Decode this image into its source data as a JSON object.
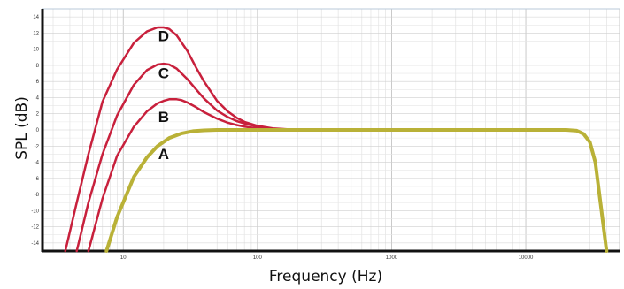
{
  "chart_data": {
    "type": "line",
    "title": "",
    "xlabel": "Frequency (Hz)",
    "ylabel": "SPL (dB)",
    "xscale": "log",
    "xlim": [
      2.5,
      50000
    ],
    "ylim": [
      -15,
      15
    ],
    "grid": true,
    "x_ticks": [
      {
        "value": 10,
        "label": "10"
      },
      {
        "value": 100,
        "label": "100"
      },
      {
        "value": 1000,
        "label": "1000"
      },
      {
        "value": 10000,
        "label": "10000"
      }
    ],
    "y_ticks": [
      {
        "value": 14,
        "label": "14"
      },
      {
        "value": 12,
        "label": "12"
      },
      {
        "value": 10,
        "label": "10"
      },
      {
        "value": 8,
        "label": "8"
      },
      {
        "value": 6,
        "label": "6"
      },
      {
        "value": 4,
        "label": "4"
      },
      {
        "value": 2,
        "label": "2"
      },
      {
        "value": 0,
        "label": "0"
      },
      {
        "value": -2,
        "label": "-2"
      },
      {
        "value": -4,
        "label": "-4"
      },
      {
        "value": -6,
        "label": "-6"
      },
      {
        "value": -8,
        "label": "-8"
      },
      {
        "value": -10,
        "label": "-10"
      },
      {
        "value": -12,
        "label": "-12"
      },
      {
        "value": -14,
        "label": "-14"
      }
    ],
    "series": [
      {
        "name": "D",
        "color": "#c8203c",
        "x": [
          3.7,
          4.5,
          5.5,
          7,
          9,
          12,
          15,
          18,
          20,
          22,
          25,
          30,
          35,
          40,
          50,
          60,
          70,
          80,
          100,
          130,
          200,
          400,
          1000,
          10000
        ],
        "y": [
          -15,
          -9,
          -3,
          3.5,
          7.5,
          10.8,
          12.2,
          12.7,
          12.7,
          12.5,
          11.7,
          9.8,
          7.7,
          6,
          3.6,
          2.3,
          1.5,
          1,
          0.5,
          0.2,
          0,
          0,
          0,
          0
        ]
      },
      {
        "name": "C",
        "color": "#c8203c",
        "x": [
          4.5,
          5.5,
          7,
          9,
          12,
          15,
          18,
          20,
          22,
          25,
          30,
          35,
          40,
          50,
          60,
          70,
          80,
          100,
          130,
          200,
          400,
          1000,
          10000
        ],
        "y": [
          -15,
          -9,
          -3,
          1.8,
          5.6,
          7.4,
          8.1,
          8.2,
          8.1,
          7.6,
          6.3,
          5,
          3.9,
          2.4,
          1.6,
          1.1,
          0.8,
          0.4,
          0.15,
          0,
          0,
          0,
          0
        ]
      },
      {
        "name": "B",
        "color": "#c8203c",
        "x": [
          5.5,
          7,
          9,
          12,
          15,
          18,
          20,
          22,
          25,
          27,
          30,
          35,
          40,
          50,
          60,
          70,
          80,
          100,
          130,
          200,
          400,
          1000,
          10000
        ],
        "y": [
          -15,
          -8.5,
          -3.2,
          0.4,
          2.3,
          3.3,
          3.6,
          3.8,
          3.8,
          3.7,
          3.4,
          2.8,
          2.2,
          1.4,
          0.9,
          0.6,
          0.4,
          0.2,
          0.05,
          0,
          0,
          0,
          0
        ]
      },
      {
        "name": "A",
        "color": "#b9b137",
        "x": [
          7.5,
          9,
          12,
          15,
          18,
          22,
          27,
          33,
          40,
          50,
          70,
          100,
          1000,
          10000,
          20000,
          24000,
          27000,
          30000,
          33000,
          36000,
          40000
        ],
        "y": [
          -15,
          -10.8,
          -5.8,
          -3.4,
          -2,
          -1,
          -0.45,
          -0.15,
          -0.05,
          0,
          0,
          0,
          0,
          0,
          0,
          -0.1,
          -0.5,
          -1.5,
          -4,
          -9,
          -15
        ]
      }
    ],
    "curve_labels": [
      {
        "text": "D",
        "x": 20,
        "y": 11
      },
      {
        "text": "C",
        "x": 20,
        "y": 6.4
      },
      {
        "text": "B",
        "x": 20,
        "y": 1
      },
      {
        "text": "A",
        "x": 20,
        "y": -3.6
      }
    ]
  }
}
